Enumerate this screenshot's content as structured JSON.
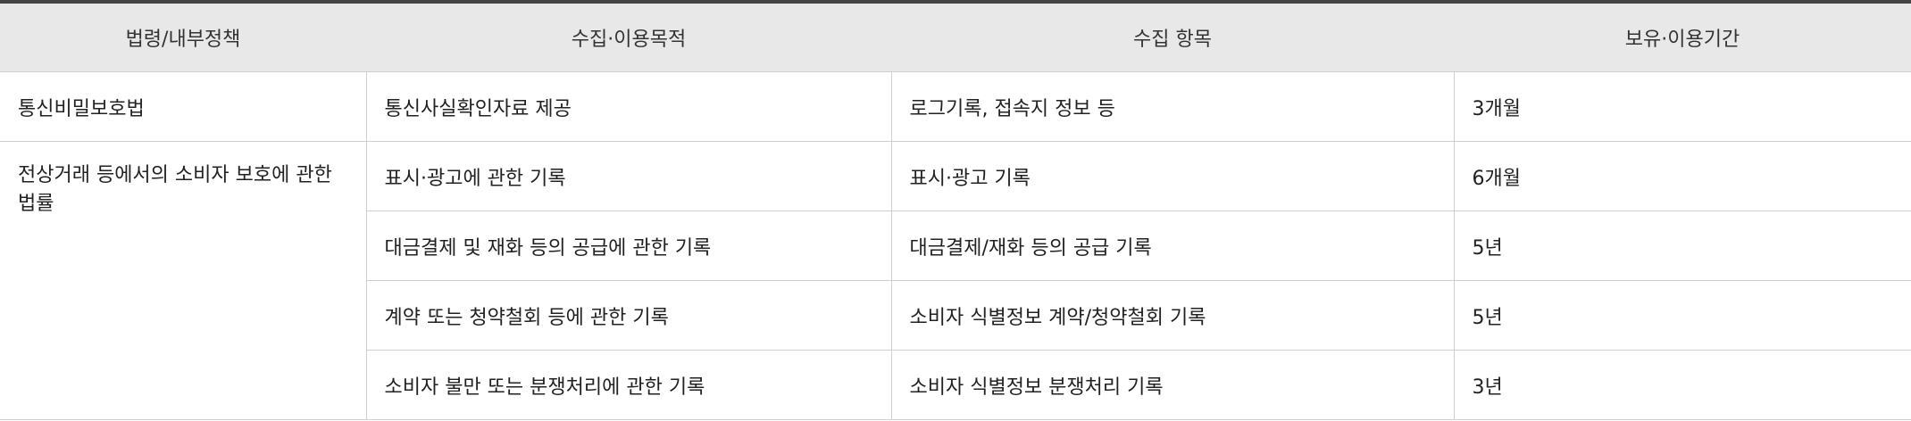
{
  "table": {
    "headers": [
      "법령/내부정책",
      "수집·이용목적",
      "수집 항목",
      "보유·이용기간"
    ],
    "row1": {
      "law": "통신비밀보호법",
      "purpose": "통신사실확인자료 제공",
      "items": "로그기록, 접속지 정보 등",
      "period": "3개월"
    },
    "law2": "전상거래 등에서의 소비자 보호에 관한 법률",
    "row2": {
      "purpose": "표시·광고에 관한 기록",
      "items": "표시·광고 기록",
      "period": "6개월"
    },
    "row3": {
      "purpose": "대금결제 및 재화 등의 공급에 관한 기록",
      "items": "대금결제/재화 등의 공급 기록",
      "period": "5년"
    },
    "row4": {
      "purpose": "계약 또는 청약철회 등에 관한 기록",
      "items": "소비자 식별정보 계약/청약철회 기록",
      "period": "5년"
    },
    "row5": {
      "purpose": "소비자 불만 또는 분쟁처리에 관한 기록",
      "items": "소비자 식별정보 분쟁처리 기록",
      "period": "3년"
    }
  }
}
